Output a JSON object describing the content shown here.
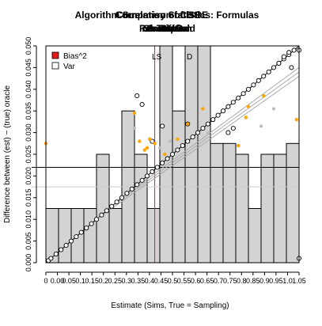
{
  "chart_data": {
    "type": "scatter",
    "title_lines": [
      [
        "Correlation of CBS",
        "Comparison of ISBE",
        "Algorithm Summary Statistics: Formulas"
      ],
      [
        "mb Diff",
        "A Test",
        "Resampled",
        "Simulation",
        "Cross Grid",
        "Strata"
      ]
    ],
    "xlabel": "Estimate (Sims, True = Sampling)",
    "ylabel": "Difference between (est) ~ (true) oracle",
    "xlim": [
      0,
      1
    ],
    "ylim": [
      0,
      1
    ],
    "x_tick_labels": [
      "0",
      "0.00",
      "0.05",
      "0.1",
      "0.15",
      "0.2",
      "0.25",
      "0.3",
      "0.35",
      "0.4",
      "0.45",
      "0.5",
      "0.55",
      "0.6",
      "0.65",
      "0.7",
      "0.75",
      "0.8",
      "0.85",
      "0.9",
      "0.95",
      "1.0",
      "1.05"
    ],
    "y_tick_labels": [
      "0.000",
      "0.005",
      "0.010",
      "0.015",
      "0.020",
      "0.025",
      "0.030",
      "0.035",
      "0.040",
      "0.045",
      "0.050"
    ],
    "legend": [
      {
        "label": "Bias^2",
        "color": "#e41a1c",
        "shape": "filled-square"
      },
      {
        "label": "Var",
        "color": "#ffffff",
        "shape": "open-square"
      }
    ],
    "annotations": [
      "LS",
      "D"
    ],
    "vline_x": 0.43,
    "hline_y": 0.44,
    "histogram": {
      "bins": [
        0.0,
        0.05,
        0.1,
        0.15,
        0.2,
        0.25,
        0.3,
        0.35,
        0.4,
        0.45,
        0.5,
        0.55,
        0.6,
        0.65,
        0.7,
        0.75,
        0.8,
        0.85,
        0.9,
        0.95,
        1.0
      ],
      "heights": [
        0.25,
        0.25,
        0.25,
        0.25,
        0.5,
        0.25,
        0.7,
        0.5,
        0.25,
        1.0,
        0.7,
        1.0,
        1.0,
        0.55,
        0.55,
        0.5,
        0.25,
        0.5,
        0.5,
        0.55
      ]
    },
    "series": [
      {
        "style": "open-circle",
        "points": [
          [
            0.01,
            0.01
          ],
          [
            0.02,
            0.02
          ],
          [
            0.04,
            0.04
          ],
          [
            0.06,
            0.06
          ],
          [
            0.08,
            0.08
          ],
          [
            0.1,
            0.1
          ],
          [
            0.12,
            0.12
          ],
          [
            0.14,
            0.14
          ],
          [
            0.16,
            0.16
          ],
          [
            0.18,
            0.18
          ],
          [
            0.2,
            0.2
          ],
          [
            0.22,
            0.22
          ],
          [
            0.24,
            0.24
          ],
          [
            0.26,
            0.26
          ],
          [
            0.28,
            0.28
          ],
          [
            0.3,
            0.3
          ],
          [
            0.32,
            0.32
          ],
          [
            0.34,
            0.34
          ],
          [
            0.36,
            0.36
          ],
          [
            0.38,
            0.38
          ],
          [
            0.4,
            0.4
          ],
          [
            0.42,
            0.42
          ],
          [
            0.44,
            0.44
          ],
          [
            0.46,
            0.46
          ],
          [
            0.48,
            0.48
          ],
          [
            0.5,
            0.5
          ],
          [
            0.52,
            0.52
          ],
          [
            0.54,
            0.54
          ],
          [
            0.56,
            0.56
          ],
          [
            0.58,
            0.58
          ],
          [
            0.6,
            0.6
          ],
          [
            0.62,
            0.62
          ],
          [
            0.64,
            0.64
          ],
          [
            0.66,
            0.66
          ],
          [
            0.68,
            0.68
          ],
          [
            0.7,
            0.7
          ],
          [
            0.72,
            0.72
          ],
          [
            0.74,
            0.74
          ],
          [
            0.76,
            0.76
          ],
          [
            0.78,
            0.78
          ],
          [
            0.8,
            0.8
          ],
          [
            0.82,
            0.82
          ],
          [
            0.84,
            0.84
          ],
          [
            0.86,
            0.86
          ],
          [
            0.88,
            0.88
          ],
          [
            0.9,
            0.9
          ],
          [
            0.92,
            0.92
          ],
          [
            0.94,
            0.94
          ],
          [
            0.96,
            0.96
          ],
          [
            0.98,
            0.98
          ],
          [
            1.0,
            0.98
          ],
          [
            0.36,
            0.77
          ],
          [
            0.38,
            0.73
          ],
          [
            0.42,
            0.56
          ],
          [
            0.46,
            0.63
          ],
          [
            0.56,
            0.64
          ],
          [
            0.72,
            0.6
          ],
          [
            0.74,
            0.62
          ],
          [
            0.92,
            0.92
          ],
          [
            0.94,
            0.95
          ],
          [
            0.96,
            0.97
          ],
          [
            0.97,
            0.9
          ],
          [
            1.0,
            0.02
          ]
        ]
      },
      {
        "style": "orange-dot",
        "points": [
          [
            0.35,
            0.69
          ],
          [
            0.37,
            0.56
          ],
          [
            0.39,
            0.52
          ],
          [
            0.4,
            0.53
          ],
          [
            0.41,
            0.57
          ],
          [
            0.43,
            0.55
          ],
          [
            0.47,
            0.5
          ],
          [
            0.52,
            0.57
          ],
          [
            0.56,
            0.64
          ],
          [
            0.62,
            0.71
          ],
          [
            0.76,
            0.54
          ],
          [
            0.79,
            0.67
          ],
          [
            0.8,
            0.72
          ],
          [
            0.86,
            0.77
          ],
          [
            0.99,
            0.66
          ],
          [
            0.0,
            0.55
          ]
        ]
      },
      {
        "style": "gray-dot",
        "points": [
          [
            0.35,
            0.62
          ],
          [
            0.45,
            0.53
          ],
          [
            0.49,
            0.56
          ],
          [
            0.64,
            0.6
          ],
          [
            0.85,
            0.63
          ],
          [
            0.9,
            0.71
          ]
        ]
      }
    ]
  }
}
